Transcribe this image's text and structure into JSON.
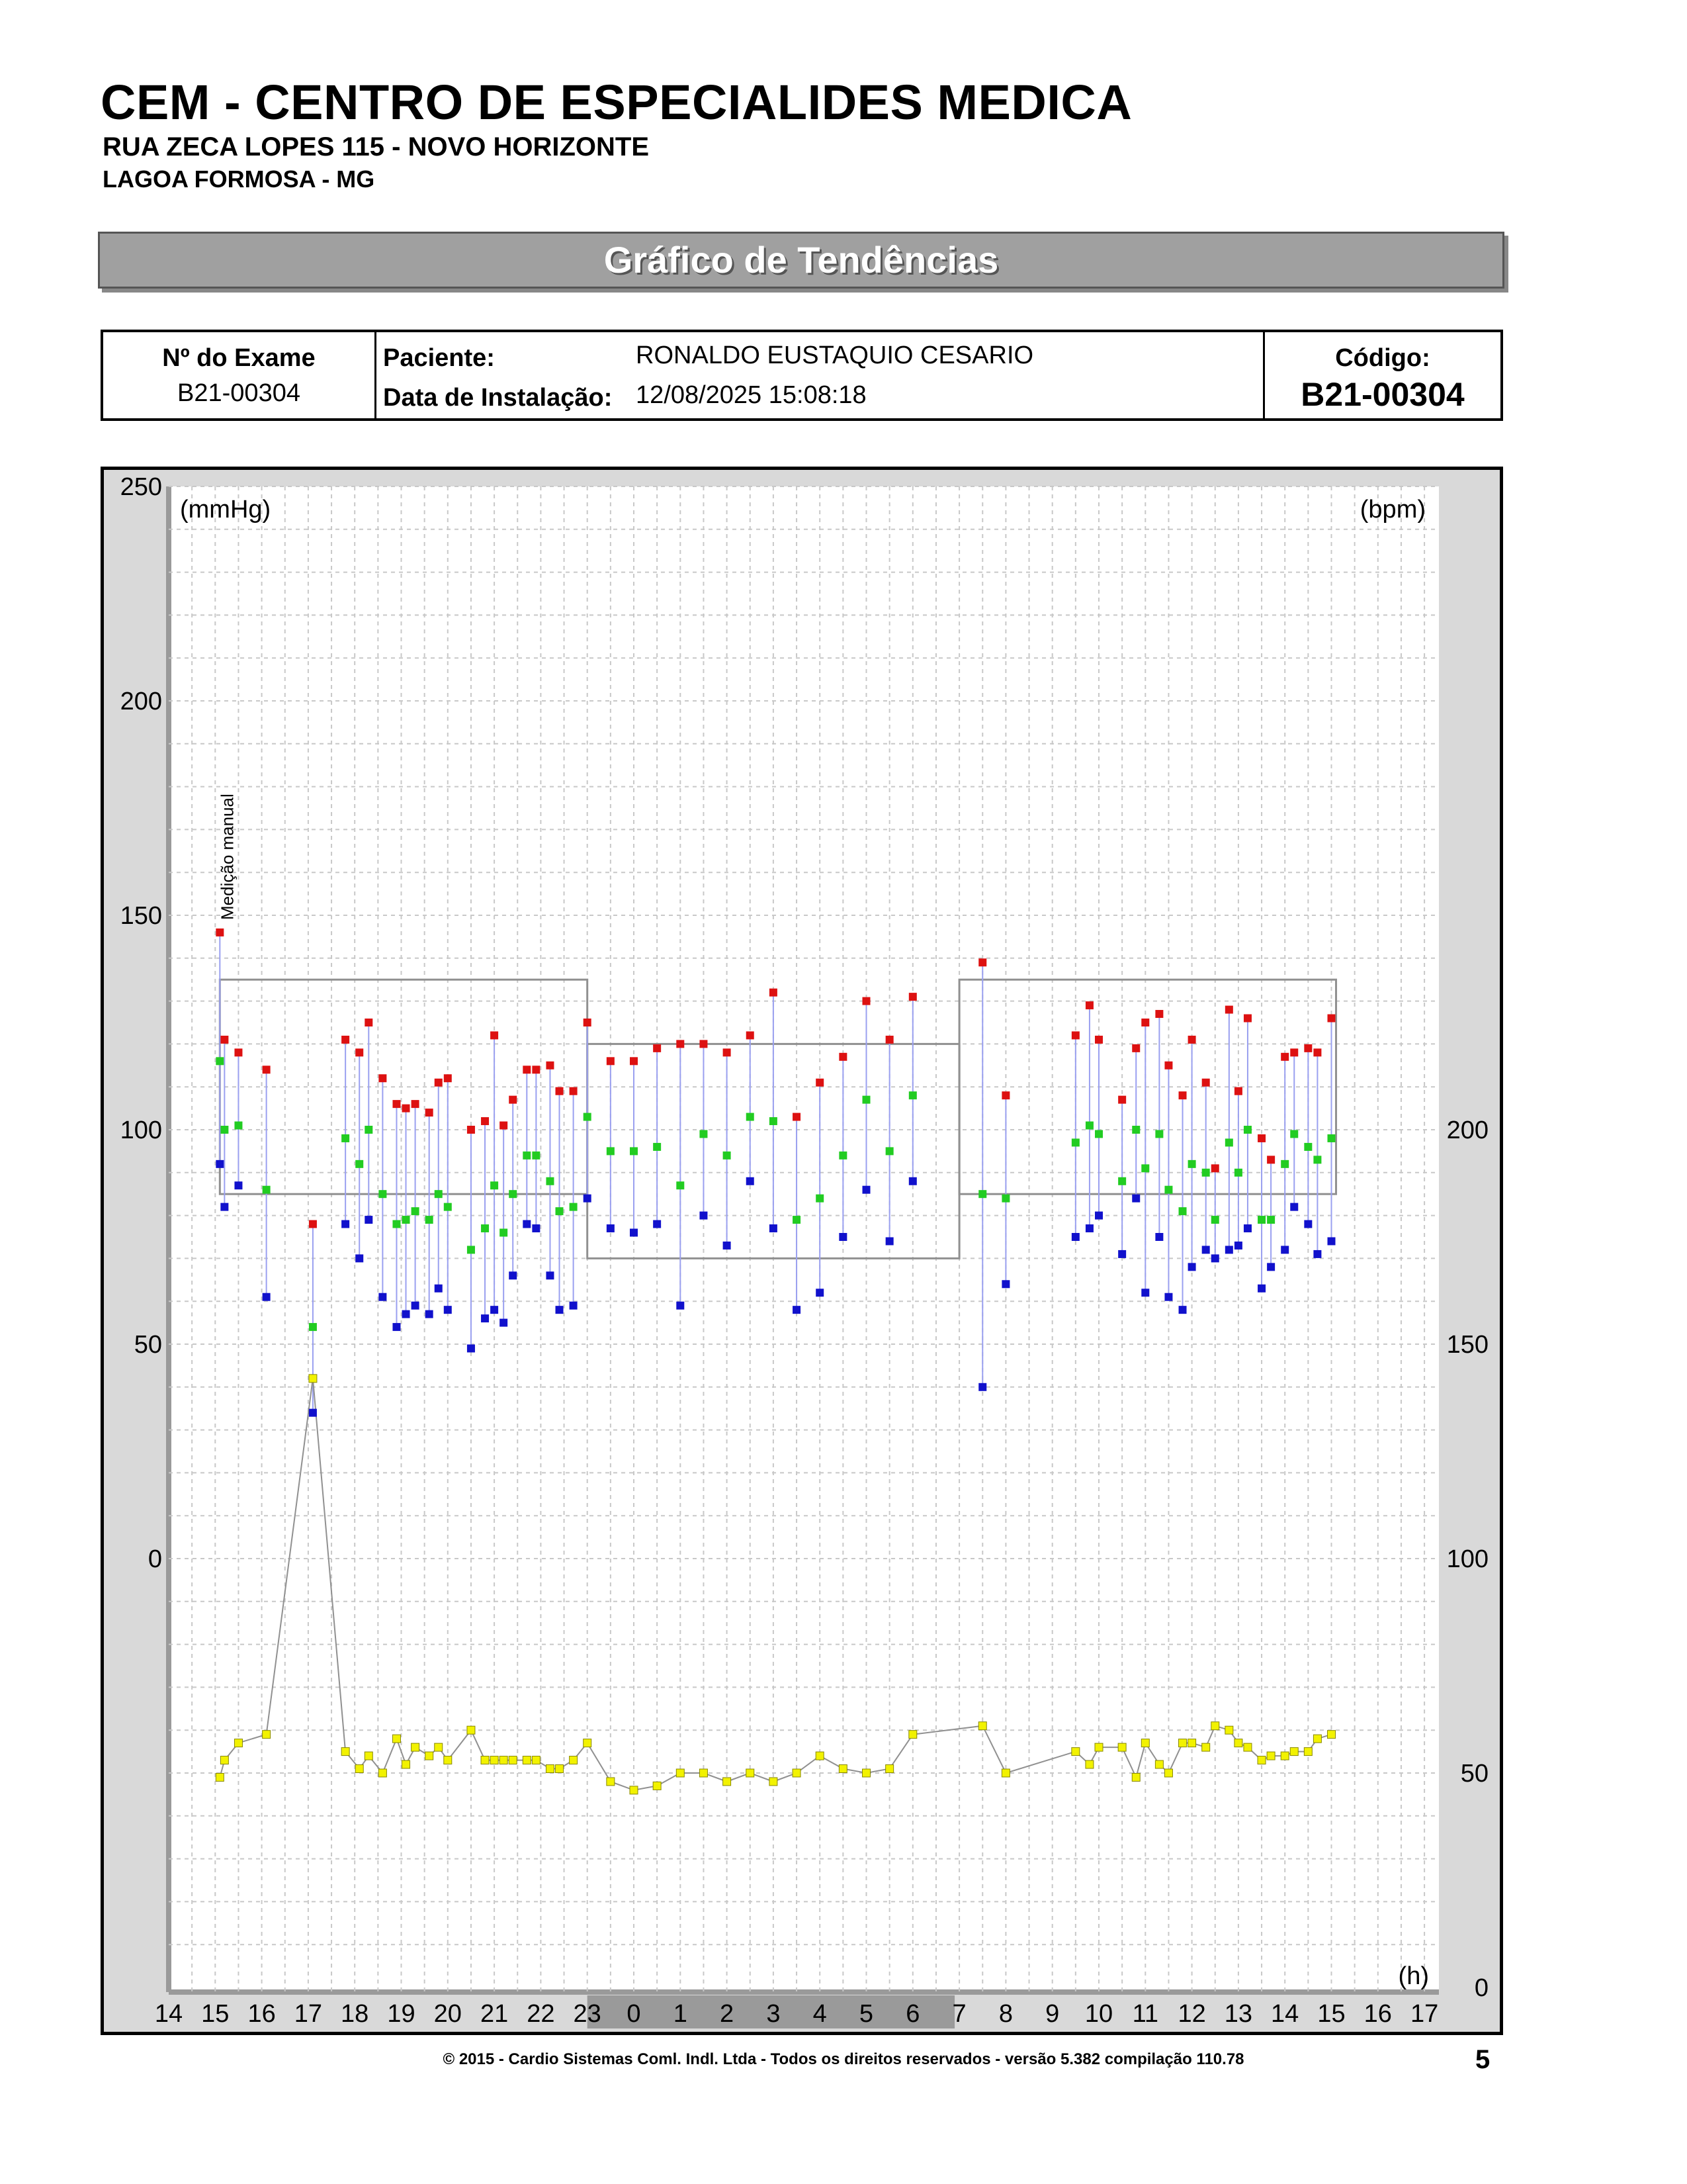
{
  "header": {
    "title": "CEM - CENTRO DE ESPECIALIDES MEDICA",
    "address": "RUA ZECA LOPES 115 - NOVO HORIZONTE",
    "city": "LAGOA FORMOSA - MG"
  },
  "banner": {
    "title": "Gráfico de Tendências"
  },
  "info": {
    "exam_label": "Nº do Exame",
    "exam_value": "B21-00304",
    "patient_label": "Paciente:",
    "patient_value": "RONALDO EUSTAQUIO CESARIO",
    "install_label": "Data de Instalação:",
    "install_value": "12/08/2025 15:08:18",
    "code_label": "Código:",
    "code_value": "B21-00304"
  },
  "footer": {
    "copyright": "© 2015 - Cardio Sistemas Coml. Indl. Ltda - Todos os direitos reservados - versão 5.382 compilação 110.78",
    "page": "5"
  },
  "chart_data": {
    "type": "scatter",
    "left_unit": "(mmHg)",
    "right_unit": "(bpm)",
    "x_unit": "(h)",
    "annotation": "Medição manual",
    "left_ticks": [
      "250",
      "200",
      "150",
      "100",
      "50",
      "0"
    ],
    "right_ticks": [
      "200",
      "150",
      "100",
      "50",
      "0"
    ],
    "x_labels": [
      "14",
      "15",
      "16",
      "17",
      "18",
      "19",
      "20",
      "21",
      "22",
      "23",
      "0",
      "1",
      "2",
      "3",
      "4",
      "5",
      "6",
      "7",
      "8",
      "9",
      "10",
      "11",
      "12",
      "13",
      "14",
      "15",
      "16",
      "17"
    ],
    "sleep_period_hours": [
      23,
      6.9
    ],
    "colors": {
      "systolic": "#dd1111",
      "diastolic": "#1111cc",
      "mean": "#22cc22",
      "heart_rate": "#f2f200"
    },
    "limits": [
      {
        "from": 15.1,
        "to": 23,
        "systolic": 135,
        "diastolic": 85
      },
      {
        "from": 23,
        "to": 7,
        "systolic": 120,
        "diastolic": 70
      },
      {
        "from": 7,
        "to": 15.1,
        "systolic": 135,
        "diastolic": 85
      }
    ],
    "series": [
      {
        "t": 15.1,
        "sys": 146,
        "mean": 116,
        "dia": 92,
        "hr": 49
      },
      {
        "t": 15.2,
        "sys": 121,
        "mean": 100,
        "dia": 82,
        "hr": 53
      },
      {
        "t": 15.5,
        "sys": 118,
        "mean": 101,
        "dia": 87,
        "hr": 57
      },
      {
        "t": 16.1,
        "sys": 114,
        "mean": 86,
        "dia": 61,
        "hr": 59
      },
      {
        "t": 17.1,
        "sys": 78,
        "mean": 54,
        "dia": 34,
        "hr": 142
      },
      {
        "t": 17.8,
        "sys": 121,
        "mean": 98,
        "dia": 78,
        "hr": 55
      },
      {
        "t": 18.1,
        "sys": 118,
        "mean": 92,
        "dia": 70,
        "hr": 51
      },
      {
        "t": 18.3,
        "sys": 125,
        "mean": 100,
        "dia": 79,
        "hr": 54
      },
      {
        "t": 18.6,
        "sys": 112,
        "mean": 85,
        "dia": 61,
        "hr": 50
      },
      {
        "t": 18.9,
        "sys": 106,
        "mean": 78,
        "dia": 54,
        "hr": 58
      },
      {
        "t": 19.1,
        "sys": 105,
        "mean": 79,
        "dia": 57,
        "hr": 52
      },
      {
        "t": 19.3,
        "sys": 106,
        "mean": 81,
        "dia": 59,
        "hr": 56
      },
      {
        "t": 19.6,
        "sys": 104,
        "mean": 79,
        "dia": 57,
        "hr": 54
      },
      {
        "t": 19.8,
        "sys": 111,
        "mean": 85,
        "dia": 63,
        "hr": 56
      },
      {
        "t": 20.0,
        "sys": 112,
        "mean": 82,
        "dia": 58,
        "hr": 53
      },
      {
        "t": 20.5,
        "sys": 100,
        "mean": 72,
        "dia": 49,
        "hr": 60
      },
      {
        "t": 20.8,
        "sys": 102,
        "mean": 77,
        "dia": 56,
        "hr": 53
      },
      {
        "t": 21.0,
        "sys": 122,
        "mean": 87,
        "dia": 58,
        "hr": 53
      },
      {
        "t": 21.2,
        "sys": 101,
        "mean": 76,
        "dia": 55,
        "hr": 53
      },
      {
        "t": 21.4,
        "sys": 107,
        "mean": 85,
        "dia": 66,
        "hr": 53
      },
      {
        "t": 21.7,
        "sys": 114,
        "mean": 94,
        "dia": 78,
        "hr": 53
      },
      {
        "t": 21.9,
        "sys": 114,
        "mean": 94,
        "dia": 77,
        "hr": 53
      },
      {
        "t": 22.2,
        "sys": 115,
        "mean": 88,
        "dia": 66,
        "hr": 51
      },
      {
        "t": 22.4,
        "sys": 109,
        "mean": 81,
        "dia": 58,
        "hr": 51
      },
      {
        "t": 22.7,
        "sys": 109,
        "mean": 82,
        "dia": 59,
        "hr": 53
      },
      {
        "t": 23.0,
        "sys": 125,
        "mean": 103,
        "dia": 84,
        "hr": 57
      },
      {
        "t": 23.5,
        "sys": 116,
        "mean": 95,
        "dia": 77,
        "hr": 48
      },
      {
        "t": 24.0,
        "sys": 116,
        "mean": 95,
        "dia": 76,
        "hr": 46
      },
      {
        "t": 24.5,
        "sys": 119,
        "mean": 96,
        "dia": 78,
        "hr": 47
      },
      {
        "t": 25.0,
        "sys": 120,
        "mean": 87,
        "dia": 59,
        "hr": 50
      },
      {
        "t": 25.5,
        "sys": 120,
        "mean": 99,
        "dia": 80,
        "hr": 50
      },
      {
        "t": 26.0,
        "sys": 118,
        "mean": 94,
        "dia": 73,
        "hr": 48
      },
      {
        "t": 26.5,
        "sys": 122,
        "mean": 103,
        "dia": 88,
        "hr": 50
      },
      {
        "t": 27.0,
        "sys": 132,
        "mean": 102,
        "dia": 77,
        "hr": 48
      },
      {
        "t": 27.5,
        "sys": 103,
        "mean": 79,
        "dia": 58,
        "hr": 50
      },
      {
        "t": 28.0,
        "sys": 111,
        "mean": 84,
        "dia": 62,
        "hr": 54
      },
      {
        "t": 28.5,
        "sys": 117,
        "mean": 94,
        "dia": 75,
        "hr": 51
      },
      {
        "t": 29.0,
        "sys": 130,
        "mean": 107,
        "dia": 86,
        "hr": 50
      },
      {
        "t": 29.5,
        "sys": 121,
        "mean": 95,
        "dia": 74,
        "hr": 51
      },
      {
        "t": 30.0,
        "sys": 131,
        "mean": 108,
        "dia": 88,
        "hr": 59
      },
      {
        "t": 31.5,
        "sys": 139,
        "mean": 85,
        "dia": 40,
        "hr": 61
      },
      {
        "t": 32.0,
        "sys": 108,
        "mean": 84,
        "dia": 64,
        "hr": 50
      },
      {
        "t": 33.5,
        "sys": 122,
        "mean": 97,
        "dia": 75,
        "hr": 55
      },
      {
        "t": 33.8,
        "sys": 129,
        "mean": 101,
        "dia": 77,
        "hr": 52
      },
      {
        "t": 34.0,
        "sys": 121,
        "mean": 99,
        "dia": 80,
        "hr": 56
      },
      {
        "t": 34.5,
        "sys": 107,
        "mean": 88,
        "dia": 71,
        "hr": 56
      },
      {
        "t": 34.8,
        "sys": 119,
        "mean": 100,
        "dia": 84,
        "hr": 49
      },
      {
        "t": 35.0,
        "sys": 125,
        "mean": 91,
        "dia": 62,
        "hr": 57
      },
      {
        "t": 35.3,
        "sys": 127,
        "mean": 99,
        "dia": 75,
        "hr": 52
      },
      {
        "t": 35.5,
        "sys": 115,
        "mean": 86,
        "dia": 61,
        "hr": 50
      },
      {
        "t": 35.8,
        "sys": 108,
        "mean": 81,
        "dia": 58,
        "hr": 57
      },
      {
        "t": 36.0,
        "sys": 121,
        "mean": 92,
        "dia": 68,
        "hr": 57
      },
      {
        "t": 36.3,
        "sys": 111,
        "mean": 90,
        "dia": 72,
        "hr": 56
      },
      {
        "t": 36.5,
        "sys": 91,
        "mean": 79,
        "dia": 70,
        "hr": 61
      },
      {
        "t": 36.8,
        "sys": 128,
        "mean": 97,
        "dia": 72,
        "hr": 60
      },
      {
        "t": 37.0,
        "sys": 109,
        "mean": 90,
        "dia": 73,
        "hr": 57
      },
      {
        "t": 37.2,
        "sys": 126,
        "mean": 100,
        "dia": 77,
        "hr": 56
      },
      {
        "t": 37.5,
        "sys": 98,
        "mean": 79,
        "dia": 63,
        "hr": 53
      },
      {
        "t": 37.7,
        "sys": 93,
        "mean": 79,
        "dia": 68,
        "hr": 54
      },
      {
        "t": 38.0,
        "sys": 117,
        "mean": 92,
        "dia": 72,
        "hr": 54
      },
      {
        "t": 38.2,
        "sys": 118,
        "mean": 99,
        "dia": 82,
        "hr": 55
      },
      {
        "t": 38.5,
        "sys": 119,
        "mean": 96,
        "dia": 78,
        "hr": 55
      },
      {
        "t": 38.7,
        "sys": 118,
        "mean": 93,
        "dia": 71,
        "hr": 58
      },
      {
        "t": 39.0,
        "sys": 126,
        "mean": 98,
        "dia": 74,
        "hr": 59
      }
    ]
  }
}
